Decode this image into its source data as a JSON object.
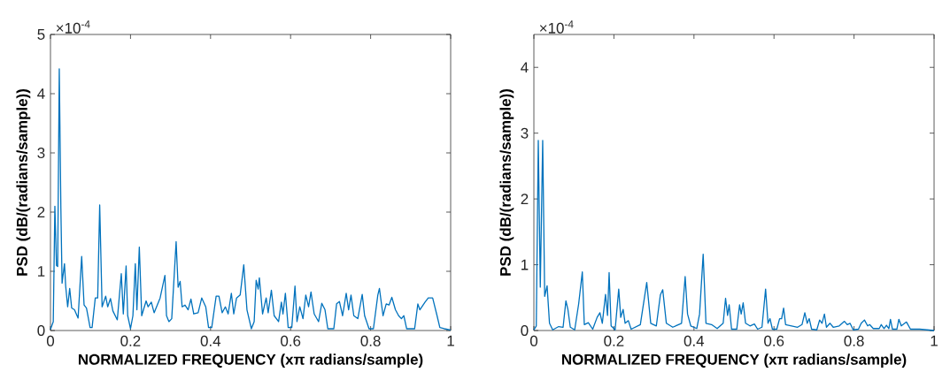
{
  "chart_data": [
    {
      "type": "line",
      "xlabel": "NORMALIZED FREQUENCY (xπ radians/sample)",
      "ylabel": "PSD (dB/(radians/sample))",
      "annotations": [
        "×10$^{-4}$"
      ],
      "xlim": [
        0,
        1
      ],
      "ylim": [
        0,
        5
      ],
      "xticks": [
        0,
        0.2,
        0.4,
        0.6,
        0.8,
        1
      ],
      "yticks": [
        0,
        1,
        2,
        3,
        4,
        5
      ],
      "color": "#0072bd",
      "x": [
        0,
        0.007,
        0.011,
        0.015,
        0.018,
        0.022,
        0.026,
        0.029,
        0.035,
        0.038,
        0.043,
        0.048,
        0.053,
        0.06,
        0.069,
        0.078,
        0.084,
        0.09,
        0.099,
        0.104,
        0.112,
        0.118,
        0.123,
        0.129,
        0.138,
        0.143,
        0.15,
        0.156,
        0.167,
        0.177,
        0.182,
        0.189,
        0.193,
        0.2,
        0.206,
        0.212,
        0.216,
        0.222,
        0.228,
        0.239,
        0.244,
        0.252,
        0.259,
        0.274,
        0.286,
        0.29,
        0.296,
        0.303,
        0.314,
        0.319,
        0.324,
        0.329,
        0.336,
        0.344,
        0.351,
        0.358,
        0.369,
        0.378,
        0.388,
        0.395,
        0.403,
        0.414,
        0.421,
        0.429,
        0.437,
        0.444,
        0.452,
        0.458,
        0.465,
        0.474,
        0.483,
        0.491,
        0.502,
        0.509,
        0.514,
        0.519,
        0.522,
        0.53,
        0.539,
        0.544,
        0.552,
        0.559,
        0.57,
        0.577,
        0.581,
        0.587,
        0.594,
        0.603,
        0.611,
        0.616,
        0.623,
        0.631,
        0.638,
        0.645,
        0.651,
        0.659,
        0.67,
        0.678,
        0.686,
        0.693,
        0.708,
        0.715,
        0.722,
        0.73,
        0.739,
        0.745,
        0.751,
        0.758,
        0.768,
        0.779,
        0.785,
        0.796,
        0.807,
        0.818,
        0.822,
        0.831,
        0.839,
        0.846,
        0.853,
        0.862,
        0.87,
        0.877,
        0.883,
        0.89,
        0.91,
        0.918,
        0.923,
        0.936,
        0.944,
        0.955,
        0.966,
        0.973,
        0.984,
        1
      ],
      "values": [
        0.02,
        0.15,
        2.1,
        1.1,
        1.08,
        4.42,
        2.06,
        0.8,
        1.13,
        0.75,
        0.4,
        0.71,
        0.38,
        0.35,
        0.21,
        1.25,
        0.43,
        0.38,
        0.05,
        0.05,
        0.55,
        0.55,
        2.12,
        0.4,
        0.58,
        0.4,
        0.54,
        0.33,
        0.18,
        0.96,
        0.28,
        1.09,
        0.25,
        0.03,
        0.25,
        1.13,
        0.35,
        1.41,
        0.25,
        0.5,
        0.4,
        0.48,
        0.3,
        0.55,
        0.93,
        0.25,
        0.15,
        0.2,
        1.5,
        0.73,
        0.83,
        0.4,
        0.43,
        0.35,
        0.53,
        0.28,
        0.3,
        0.55,
        0.4,
        0.05,
        0.05,
        0.58,
        0.58,
        0.3,
        0.4,
        0.28,
        0.63,
        0.28,
        0.55,
        0.6,
        1.11,
        0.35,
        0.03,
        0.15,
        0.85,
        0.7,
        0.89,
        0.28,
        0.55,
        0.3,
        0.68,
        0.25,
        0.15,
        0.48,
        0.28,
        0.63,
        0.05,
        0.05,
        0.75,
        0.15,
        0.4,
        0.2,
        0.6,
        0.4,
        0.65,
        0.28,
        0.15,
        0.46,
        0.35,
        0.03,
        0.03,
        0.45,
        0.49,
        0.25,
        0.63,
        0.35,
        0.6,
        0.25,
        0.2,
        0.61,
        0.25,
        0.03,
        0.03,
        0.6,
        0.71,
        0.25,
        0.45,
        0.43,
        0.56,
        0.35,
        0.25,
        0.2,
        0.25,
        0.03,
        0.03,
        0.45,
        0.35,
        0.48,
        0.55,
        0.55,
        0.25,
        0.05,
        0.03,
        0.01
      ]
    },
    {
      "type": "line",
      "xlabel": "NORMALIZED FREQUENCY (xπ radians/sample)",
      "ylabel": "PSD (dB/(radians/sample))",
      "annotations": [
        "×10$^{-4}$"
      ],
      "xlim": [
        0,
        1
      ],
      "ylim": [
        0,
        4.5
      ],
      "xticks": [
        0,
        0.2,
        0.4,
        0.6,
        0.8,
        1
      ],
      "yticks": [
        0,
        1,
        2,
        3,
        4
      ],
      "color": "#0072bd",
      "x": [
        0,
        0.006,
        0.011,
        0.016,
        0.022,
        0.027,
        0.033,
        0.039,
        0.047,
        0.062,
        0.073,
        0.08,
        0.085,
        0.091,
        0.102,
        0.112,
        0.121,
        0.126,
        0.136,
        0.147,
        0.158,
        0.165,
        0.171,
        0.179,
        0.184,
        0.188,
        0.193,
        0.203,
        0.212,
        0.217,
        0.223,
        0.228,
        0.236,
        0.243,
        0.266,
        0.282,
        0.292,
        0.306,
        0.316,
        0.322,
        0.331,
        0.347,
        0.369,
        0.378,
        0.384,
        0.392,
        0.407,
        0.414,
        0.423,
        0.43,
        0.444,
        0.458,
        0.473,
        0.479,
        0.484,
        0.488,
        0.494,
        0.507,
        0.514,
        0.518,
        0.523,
        0.529,
        0.54,
        0.551,
        0.559,
        0.57,
        0.579,
        0.585,
        0.59,
        0.596,
        0.607,
        0.614,
        0.619,
        0.624,
        0.629,
        0.644,
        0.659,
        0.67,
        0.677,
        0.683,
        0.688,
        0.694,
        0.707,
        0.714,
        0.72,
        0.726,
        0.731,
        0.74,
        0.748,
        0.763,
        0.776,
        0.783,
        0.79,
        0.798,
        0.811,
        0.818,
        0.826,
        0.834,
        0.839,
        0.848,
        0.863,
        0.868,
        0.875,
        0.881,
        0.887,
        0.891,
        0.896,
        0.907,
        0.912,
        0.918,
        0.931,
        0.941,
        0.964,
        1
      ],
      "values": [
        0.01,
        0.07,
        2.89,
        0.66,
        2.89,
        0.52,
        0.68,
        0.11,
        0.01,
        0.06,
        0.05,
        0.45,
        0.32,
        0.05,
        0.01,
        0.41,
        0.89,
        0.09,
        0.12,
        0.02,
        0.2,
        0.27,
        0.11,
        0.55,
        0.23,
        0.88,
        0.07,
        0.01,
        0.63,
        0.2,
        0.32,
        0.11,
        0.15,
        0.02,
        0.09,
        0.73,
        0.11,
        0.07,
        0.54,
        0.62,
        0.11,
        0.05,
        0.11,
        0.82,
        0.25,
        0.07,
        0.03,
        0.25,
        1.16,
        0.11,
        0.09,
        0.03,
        0.11,
        0.49,
        0.23,
        0.39,
        0.02,
        0.02,
        0.39,
        0.25,
        0.42,
        0.11,
        0.07,
        0.1,
        0.02,
        0.05,
        0.63,
        0.11,
        0.18,
        0.02,
        0.02,
        0.18,
        0.18,
        0.34,
        0.09,
        0.07,
        0.05,
        0.09,
        0.27,
        0.11,
        0.18,
        0.02,
        0.01,
        0.16,
        0.11,
        0.25,
        0.05,
        0.11,
        0.05,
        0.07,
        0.14,
        0.09,
        0.11,
        0.01,
        0.02,
        0.11,
        0.16,
        0.07,
        0.09,
        0.03,
        0.03,
        0.09,
        0.03,
        0.08,
        0.03,
        0.17,
        0.02,
        0.02,
        0.17,
        0.07,
        0.13,
        0.02,
        0.02,
        0
      ]
    }
  ]
}
